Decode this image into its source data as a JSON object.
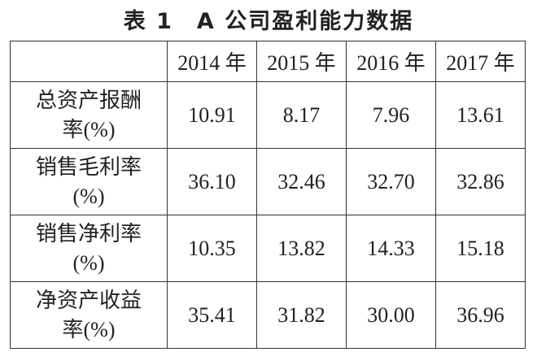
{
  "title": "表 1　A 公司盈利能力数据",
  "table": {
    "columns": [
      "2014 年",
      "2015 年",
      "2016 年",
      "2017 年"
    ],
    "rows": [
      {
        "label": "总资产报酬率(%)",
        "values": [
          "10.91",
          "8.17",
          "7.96",
          "13.61"
        ]
      },
      {
        "label": "销售毛利率(%)",
        "values": [
          "36.10",
          "32.46",
          "32.70",
          "32.86"
        ]
      },
      {
        "label": "销售净利率(%)",
        "values": [
          "10.35",
          "13.82",
          "14.33",
          "15.18"
        ]
      },
      {
        "label": "净资产收益率(%)",
        "values": [
          "35.41",
          "31.82",
          "30.00",
          "36.96"
        ]
      }
    ]
  }
}
